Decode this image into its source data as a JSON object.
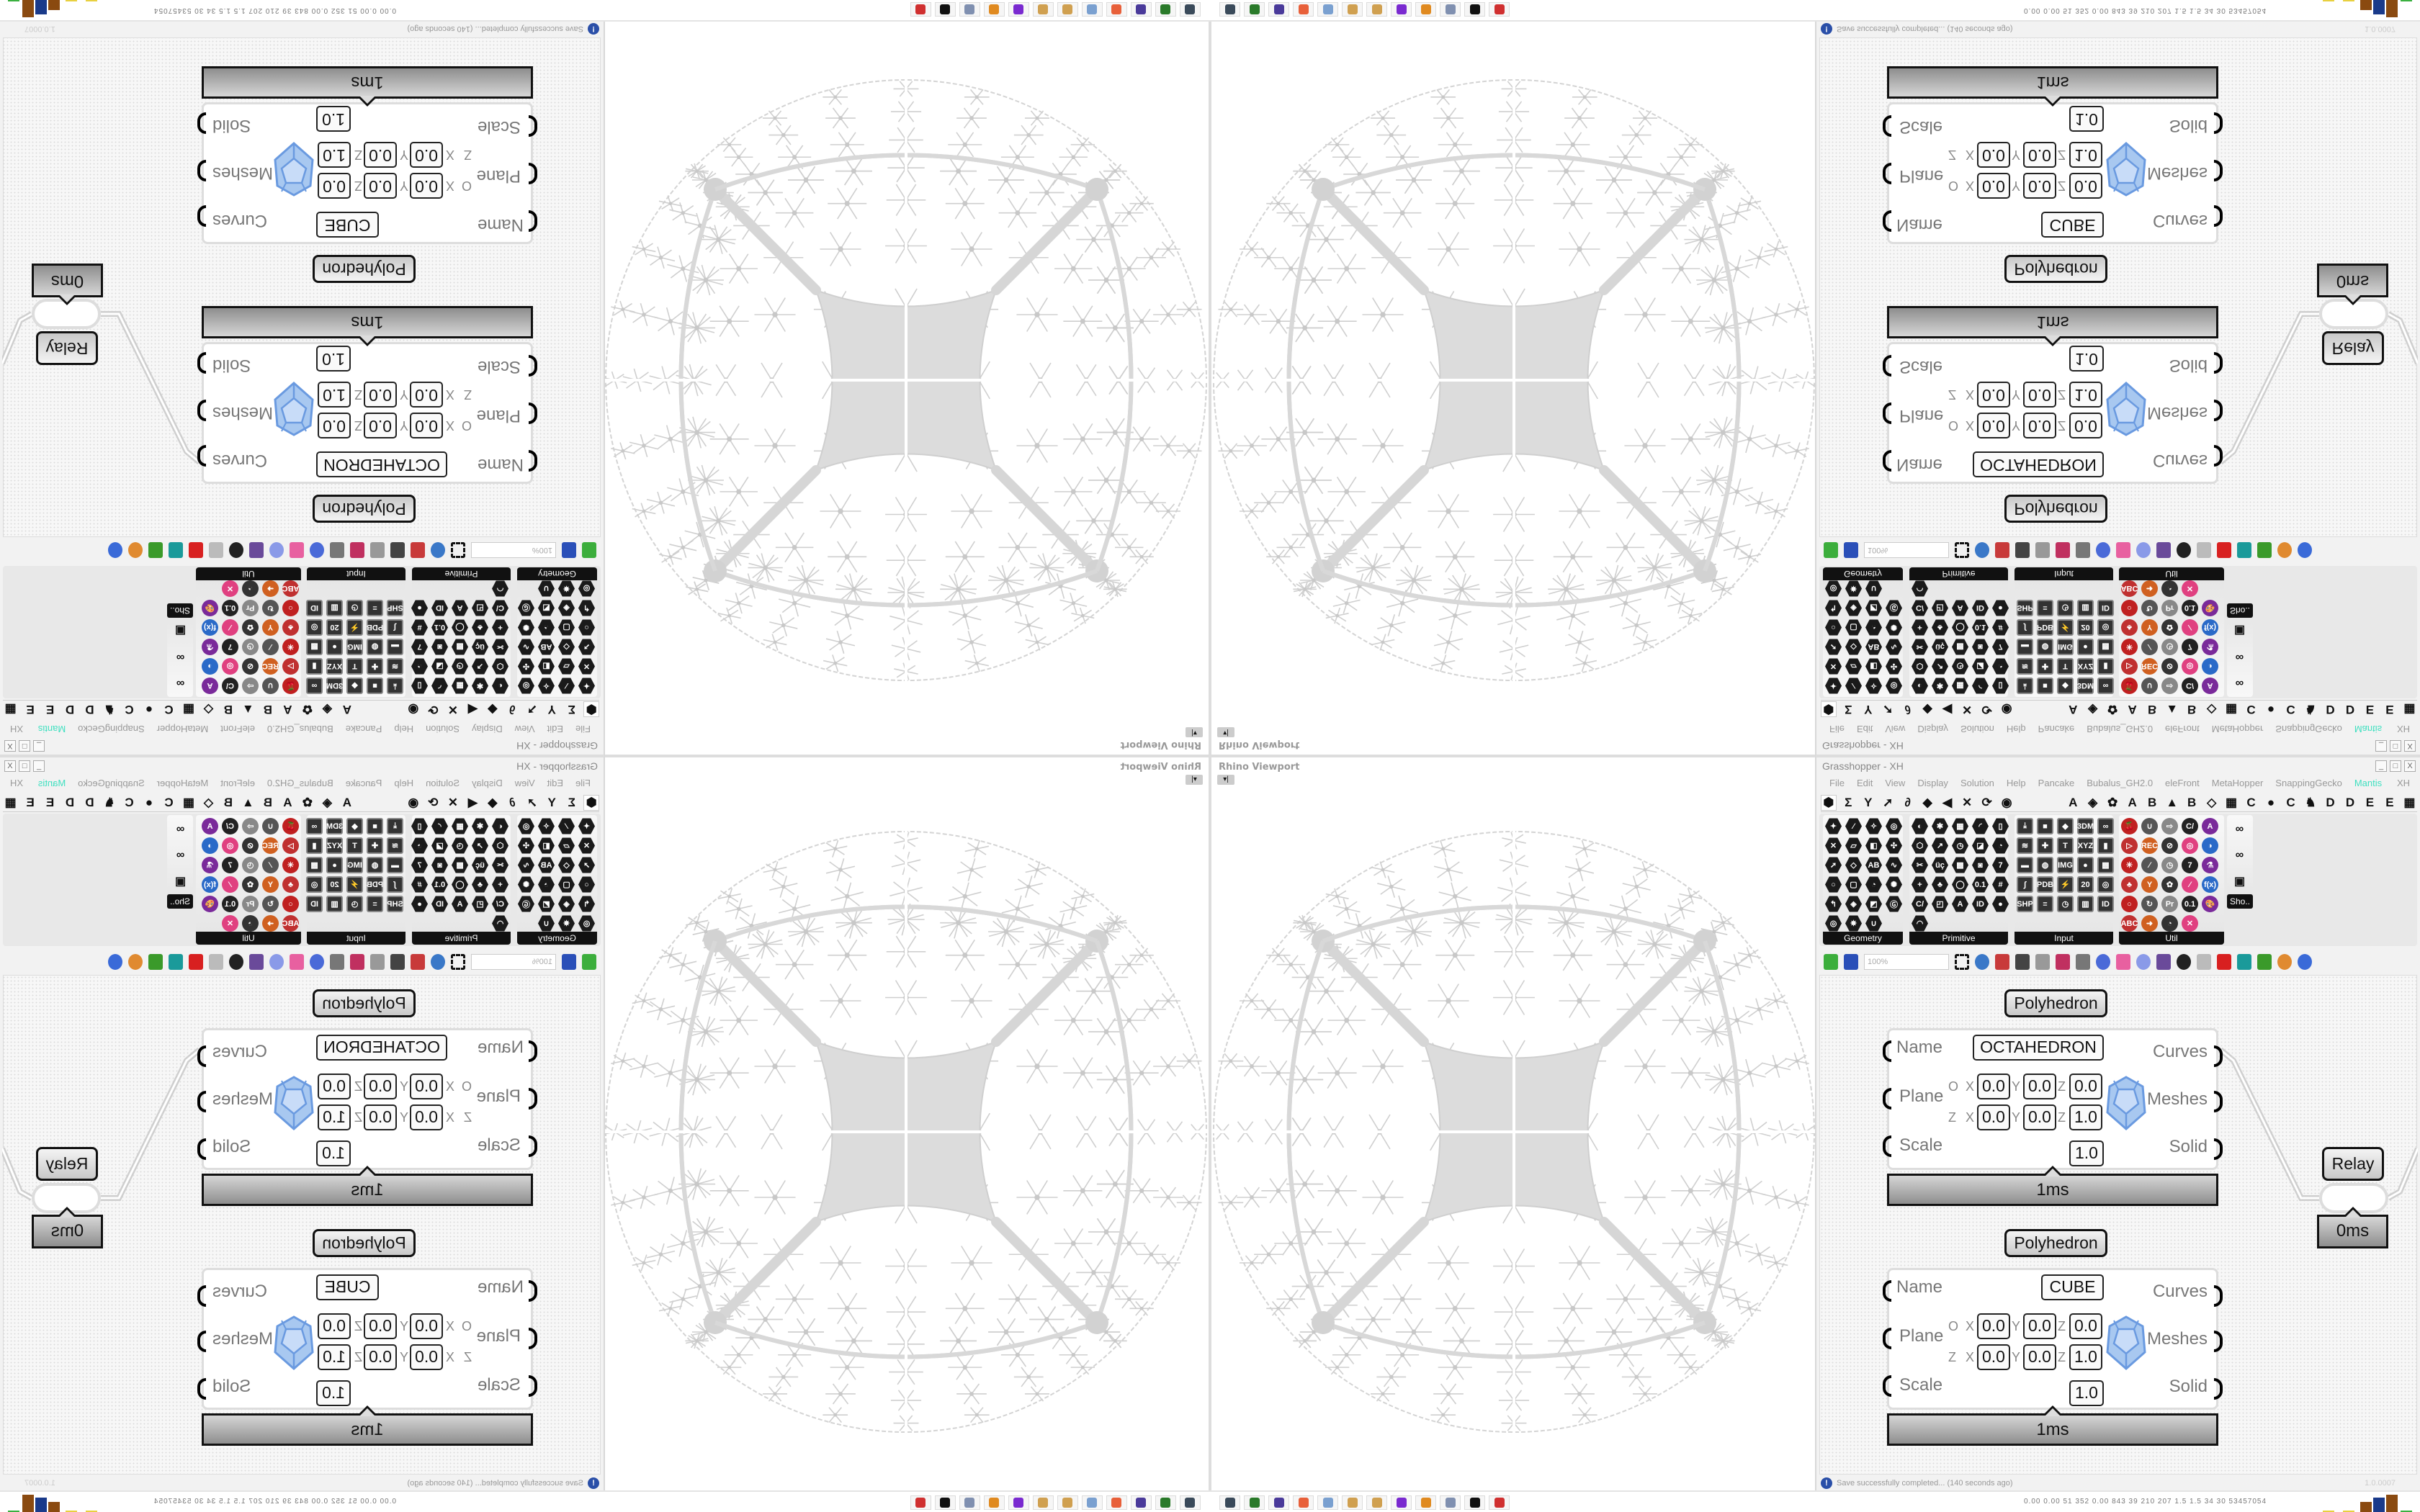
{
  "viewport": {
    "title": "Rhino Viewport",
    "dropdown_glyph": "▾|"
  },
  "grasshopper": {
    "title": "Grasshopper - XH",
    "window_buttons": [
      "_",
      "□",
      "X"
    ],
    "menu": [
      "File",
      "Edit",
      "View",
      "Display",
      "Solution",
      "Help",
      "Pancake",
      "Bubalus_GH2.0",
      "eleFront",
      "MetaHopper",
      "SnappingGecko",
      "Mantis"
    ],
    "menu_active_color": "#3fe0c0",
    "menu_right": "XH",
    "tabs": [
      "⬢",
      "Σ",
      "Y",
      "➚",
      "∂",
      "◆",
      "◀",
      "✕",
      "⟳",
      "◉",
      "",
      "A",
      "◈",
      "✿",
      "A",
      "B",
      "▲",
      "B",
      "◇",
      "▦",
      "C",
      "●",
      "C",
      "♞",
      "D",
      "D",
      "E",
      "E",
      "▦"
    ],
    "ribbon": {
      "groups": [
        {
          "name": "Geometry",
          "style": "hex",
          "cols": 4,
          "icons": [
            "✦",
            "⁄",
            "✧",
            "◎",
            "✕",
            "▱",
            "◧",
            "✣",
            "➚",
            "◇",
            "AB",
            "∿",
            "○",
            "▢",
            "◔",
            "✺",
            "↰",
            "◈",
            "◩",
            "Ⓖ",
            "◎",
            "✵",
            "∪"
          ]
        },
        {
          "name": "Primitive",
          "style": "hex",
          "cols": 5,
          "icons": [
            "◐",
            "✱",
            "▦",
            "◜",
            "▯",
            "⬡",
            "↗",
            "◷",
            "◪",
            "◔",
            "✂",
            "üç",
            "▩",
            "◙",
            "7",
            "+",
            "♣",
            "◯",
            "0.1",
            "#",
            "C/",
            "◰",
            "A",
            "ID",
            "●",
            "◠"
          ]
        },
        {
          "name": "Input",
          "style": "sq",
          "cols": 5,
          "icons": [
            "⤓",
            "■",
            "◆",
            "3DM",
            "∞",
            "≋",
            "✚",
            "T",
            "XYZ",
            "▮",
            "▬",
            "◍",
            "IMG",
            "●",
            "▩",
            "∫",
            "PDB",
            "⚡",
            "20",
            "◎",
            "SHP",
            "≡",
            "◷",
            "▥",
            "ID"
          ]
        },
        {
          "name": "Util",
          "style": "col",
          "cols": 5,
          "icons": [
            "🍒",
            "∪",
            "⇨",
            "C/",
            "A",
            "▷",
            "REC",
            "⊘",
            "◎",
            "◑",
            "✳",
            "∕",
            "◷",
            "7",
            "⚗",
            "♣",
            "Y",
            "✿",
            "⁄",
            "f(x)",
            "○",
            "↻",
            "Pr",
            "0.1",
            "🎨",
            "ABC",
            "➜",
            "◔",
            "✕"
          ]
        }
      ],
      "extra": {
        "label": "Sho..",
        "icons": [
          "∞",
          "∞",
          "▣"
        ]
      }
    },
    "toolbar": {
      "zoom": "100%"
    },
    "components": [
      {
        "title": "Polyhedron",
        "inputs": [
          "Name",
          "Plane",
          "Scale"
        ],
        "outputs": [
          "Curves",
          "Meshes",
          "Solid"
        ],
        "name_value": "OCTAHEDRON",
        "origin_label": "O",
        "axis_label": "Z",
        "coord_labels": [
          "X",
          "Y",
          "Z"
        ],
        "origin": [
          "0.0",
          "0.0",
          "0.0"
        ],
        "zaxis": [
          "0.0",
          "0.0",
          "1.0"
        ],
        "scale": "1.0",
        "time": "1ms"
      },
      {
        "title": "Polyhedron",
        "inputs": [
          "Name",
          "Plane",
          "Scale"
        ],
        "outputs": [
          "Curves",
          "Meshes",
          "Solid"
        ],
        "name_value": "CUBE",
        "origin_label": "O",
        "axis_label": "Z",
        "coord_labels": [
          "X",
          "Y",
          "Z"
        ],
        "origin": [
          "0.0",
          "0.0",
          "0.0"
        ],
        "zaxis": [
          "0.0",
          "0.0",
          "1.0"
        ],
        "scale": "1.0",
        "time": "1ms"
      }
    ],
    "relay": {
      "title": "Relay",
      "time": "0ms"
    },
    "status": {
      "icon": "!",
      "message": "Save successfully completed... (140 seconds ago)",
      "version": "1.0.0007"
    }
  },
  "taskbar": {
    "apps": [
      {
        "name": "remote-desktop",
        "color": "#3a4a5a"
      },
      {
        "name": "terminal",
        "color": "#2a7a2a"
      },
      {
        "name": "floppy-64",
        "color": "#4a3a9a"
      },
      {
        "name": "firefox",
        "color": "#e8603a"
      },
      {
        "name": "calculator",
        "color": "#7aa0d0"
      },
      {
        "name": "paint",
        "color": "#d0a050"
      },
      {
        "name": "paint",
        "color": "#d0a050"
      },
      {
        "name": "chat",
        "color": "#7a2ad0"
      },
      {
        "name": "blender",
        "color": "#e08a20"
      },
      {
        "name": "notes",
        "color": "#8090b0"
      },
      {
        "name": "rhino",
        "color": "#111111"
      },
      {
        "name": "bug-tool",
        "color": "#d03030"
      }
    ],
    "stats": "0.00 0.00 51 352 0.00 843 39 210 207 1.5 1.5 34 30 53457054"
  }
}
